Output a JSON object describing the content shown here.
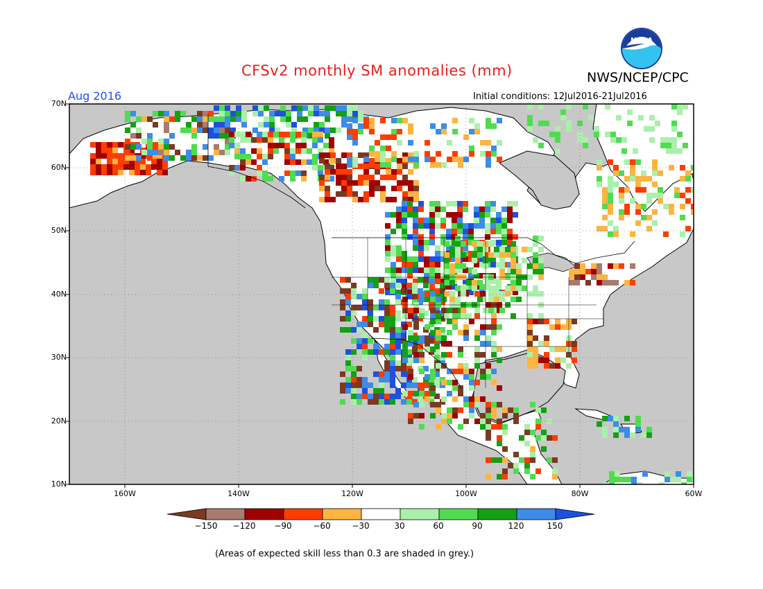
{
  "header": {
    "title": "CFSv2 monthly SM anomalies (mm)",
    "agency": "NWS/NCEP/CPC",
    "month": "Aug 2016",
    "initial_conditions": "Initial conditions: 12Jul2016-21Jul2016",
    "logo_text": "NOAA"
  },
  "map": {
    "lat_labels": [
      "70N",
      "60N",
      "50N",
      "40N",
      "30N",
      "20N",
      "10N"
    ],
    "lon_labels": [
      "160W",
      "140W",
      "120W",
      "100W",
      "80W",
      "60W"
    ],
    "extent": {
      "lon_min": -172,
      "lon_max": -60,
      "lat_min": 10,
      "lat_max": 70
    },
    "background_color": "#c8c8c8"
  },
  "colorbar": {
    "tick_labels": [
      "-150",
      "-120",
      "-90",
      "-60",
      "-30",
      "30",
      "60",
      "90",
      "120",
      "150"
    ],
    "colors": [
      "#7a3a22",
      "#a87a70",
      "#a00000",
      "#ff3c00",
      "#ffb440",
      "#ffffff",
      "#aaf0aa",
      "#50dc50",
      "#14a014",
      "#3c8ce8",
      "#1e50e0"
    ]
  },
  "note": "(Areas of expected skill less than 0.3 are shaded in grey.)"
}
